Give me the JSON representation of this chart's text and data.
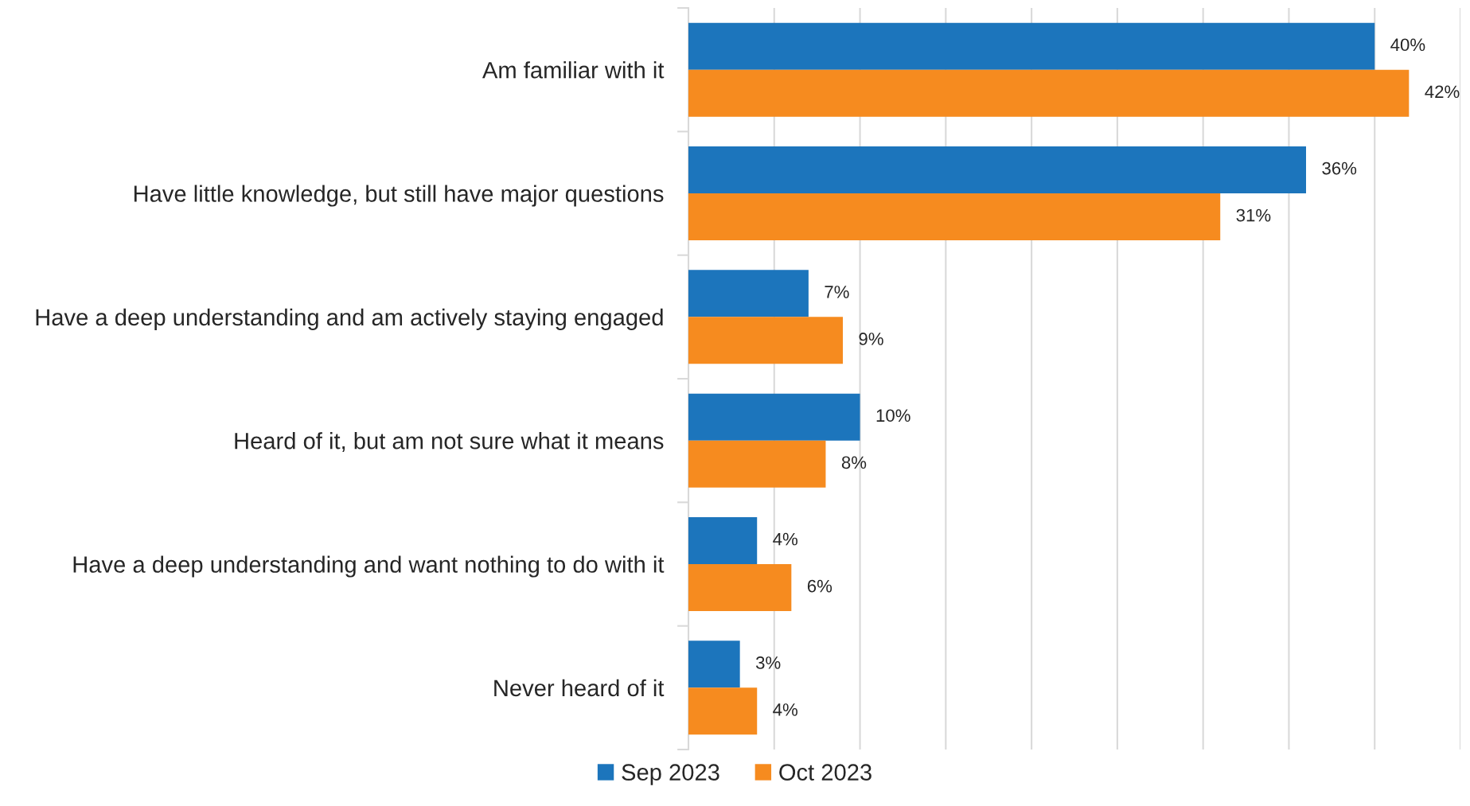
{
  "chart_data": {
    "type": "bar",
    "orientation": "horizontal",
    "categories": [
      "Am familiar with it",
      "Have little knowledge, but still have major questions",
      "Have a deep understanding and am actively staying engaged",
      "Heard of it, but am not sure what it means",
      "Have a deep understanding and want nothing to do with it",
      "Never heard of it"
    ],
    "series": [
      {
        "name": "Sep 2023",
        "color": "#1c75bc",
        "values": [
          40,
          36,
          7,
          10,
          4,
          3
        ],
        "value_labels": [
          "40%",
          "36%",
          "7%",
          "10%",
          "4%",
          "3%"
        ]
      },
      {
        "name": "Oct 2023",
        "color": "#f68b1f",
        "values": [
          42,
          31,
          9,
          8,
          6,
          4
        ],
        "value_labels": [
          "42%",
          "31%",
          "9%",
          "8%",
          "6%",
          "4%"
        ]
      }
    ],
    "xlim": [
      0,
      45
    ],
    "xticks": [
      0,
      5,
      10,
      15,
      20,
      25,
      30,
      35,
      40,
      45
    ],
    "grid": "x",
    "legend": "bottom",
    "tick_labels": "y"
  }
}
